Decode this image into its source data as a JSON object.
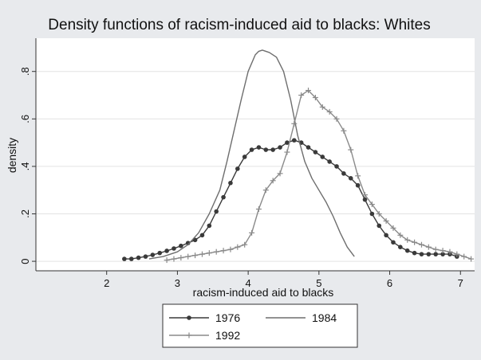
{
  "chart_data": {
    "type": "line",
    "title": "Density functions of racism-induced aid to blacks: Whites",
    "xlabel": "racism-induced aid to blacks",
    "ylabel": "density",
    "xlim": [
      1,
      7.2
    ],
    "ylim": [
      -0.04,
      0.94
    ],
    "x_ticks": [
      {
        "value": 2,
        "label": "2"
      },
      {
        "value": 3,
        "label": "3"
      },
      {
        "value": 4,
        "label": "4"
      },
      {
        "value": 5,
        "label": "5"
      },
      {
        "value": 6,
        "label": "6"
      },
      {
        "value": 7,
        "label": "7"
      }
    ],
    "y_ticks": [
      {
        "value": 0,
        "label": "0"
      },
      {
        "value": 0.2,
        "label": ".2"
      },
      {
        "value": 0.4,
        "label": ".4"
      },
      {
        "value": 0.6,
        "label": ".6"
      },
      {
        "value": 0.8,
        "label": ".8"
      }
    ],
    "grid": true,
    "legend_position": "bottom",
    "series": [
      {
        "name": "1976",
        "marker": "dot",
        "color": "#3a3a3a",
        "x": [
          2.25,
          2.35,
          2.45,
          2.55,
          2.65,
          2.75,
          2.85,
          2.95,
          3.05,
          3.15,
          3.25,
          3.35,
          3.45,
          3.55,
          3.65,
          3.75,
          3.85,
          3.95,
          4.05,
          4.15,
          4.25,
          4.35,
          4.45,
          4.55,
          4.65,
          4.75,
          4.85,
          4.95,
          5.05,
          5.15,
          5.25,
          5.35,
          5.45,
          5.55,
          5.65,
          5.75,
          5.85,
          5.95,
          6.05,
          6.15,
          6.25,
          6.35,
          6.45,
          6.55,
          6.65,
          6.75,
          6.85,
          6.95
        ],
        "y": [
          0.01,
          0.01,
          0.015,
          0.02,
          0.027,
          0.035,
          0.044,
          0.054,
          0.065,
          0.077,
          0.09,
          0.11,
          0.15,
          0.21,
          0.27,
          0.33,
          0.39,
          0.44,
          0.47,
          0.48,
          0.47,
          0.47,
          0.48,
          0.5,
          0.51,
          0.5,
          0.48,
          0.46,
          0.44,
          0.42,
          0.4,
          0.37,
          0.35,
          0.32,
          0.26,
          0.2,
          0.15,
          0.11,
          0.08,
          0.06,
          0.045,
          0.035,
          0.03,
          0.03,
          0.03,
          0.03,
          0.03,
          0.02
        ]
      },
      {
        "name": "1984",
        "marker": "none",
        "color": "#6e6e6e",
        "x": [
          2.6,
          2.8,
          3.0,
          3.15,
          3.3,
          3.45,
          3.6,
          3.7,
          3.8,
          3.9,
          4.0,
          4.1,
          4.15,
          4.2,
          4.3,
          4.4,
          4.5,
          4.6,
          4.7,
          4.8,
          4.9,
          5.0,
          5.1,
          5.2,
          5.3,
          5.4,
          5.5
        ],
        "y": [
          0.01,
          0.02,
          0.04,
          0.07,
          0.12,
          0.2,
          0.3,
          0.42,
          0.55,
          0.68,
          0.8,
          0.87,
          0.885,
          0.89,
          0.88,
          0.86,
          0.8,
          0.68,
          0.53,
          0.42,
          0.35,
          0.3,
          0.25,
          0.19,
          0.12,
          0.06,
          0.02
        ]
      },
      {
        "name": "1992",
        "marker": "plus",
        "color": "#8a8a8a",
        "x": [
          2.85,
          2.95,
          3.05,
          3.15,
          3.25,
          3.35,
          3.45,
          3.55,
          3.65,
          3.75,
          3.85,
          3.95,
          4.05,
          4.15,
          4.25,
          4.35,
          4.45,
          4.55,
          4.65,
          4.75,
          4.85,
          4.95,
          5.05,
          5.15,
          5.25,
          5.35,
          5.45,
          5.55,
          5.65,
          5.75,
          5.85,
          5.95,
          6.05,
          6.15,
          6.25,
          6.35,
          6.45,
          6.55,
          6.65,
          6.75,
          6.85,
          6.95,
          7.05,
          7.15
        ],
        "y": [
          0.005,
          0.01,
          0.015,
          0.02,
          0.025,
          0.03,
          0.035,
          0.04,
          0.045,
          0.05,
          0.06,
          0.07,
          0.12,
          0.22,
          0.3,
          0.34,
          0.37,
          0.46,
          0.58,
          0.7,
          0.72,
          0.69,
          0.65,
          0.63,
          0.6,
          0.55,
          0.47,
          0.36,
          0.28,
          0.24,
          0.2,
          0.17,
          0.14,
          0.11,
          0.09,
          0.08,
          0.07,
          0.06,
          0.05,
          0.045,
          0.04,
          0.03,
          0.02,
          0.01
        ]
      }
    ]
  }
}
